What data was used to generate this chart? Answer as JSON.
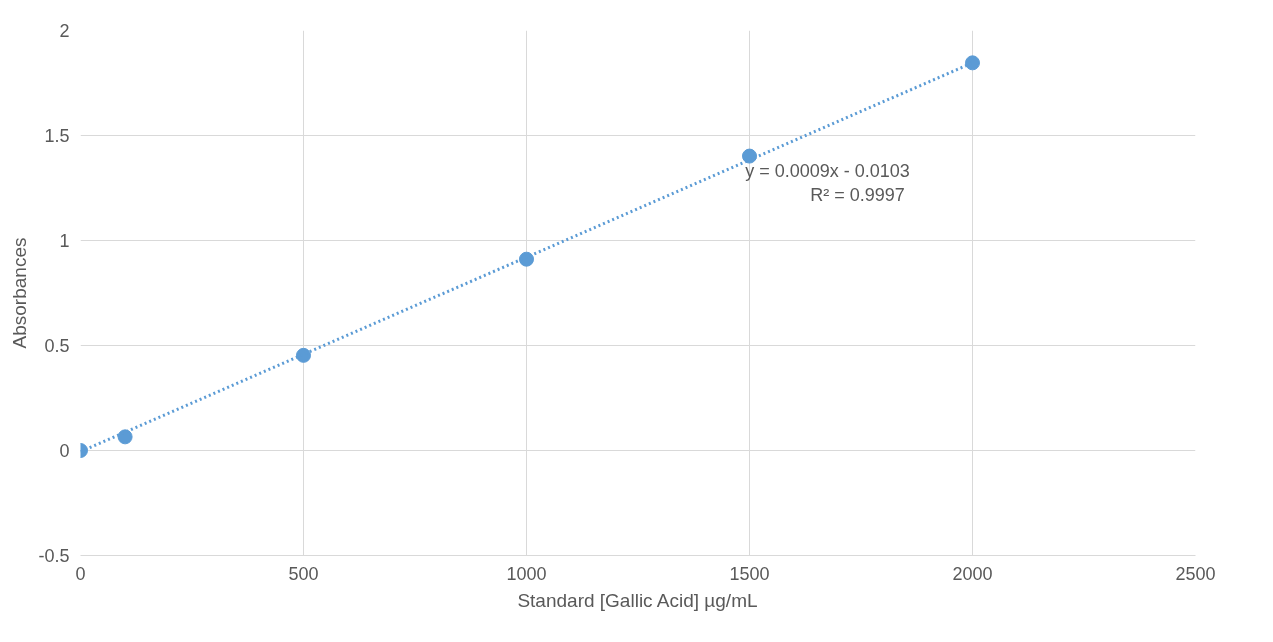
{
  "chart_data": {
    "type": "scatter",
    "xlabel": "Standard [Gallic Acid] µg/mL",
    "ylabel": "Absorbances",
    "x": [
      0,
      100,
      500,
      1000,
      1500,
      2000
    ],
    "series": [
      {
        "color": "#5b9bd5",
        "values": [
          0.0,
          0.065,
          0.453,
          0.911,
          1.402,
          1.846
        ],
        "marker": "circle"
      },
      {
        "type": "line",
        "color": "#5b9bd5",
        "x": [
          0,
          2000
        ],
        "values": [
          -0.005,
          1.846
        ],
        "line_style": "dotted",
        "marker": "none"
      }
    ],
    "annotations": [
      "y = 0.0009x - 0.0103",
      "R² = 0.9997"
    ],
    "xlim": [
      0,
      2500
    ],
    "xticks": [
      0,
      500,
      1000,
      1500,
      2000,
      2500
    ],
    "ylim": [
      -0.5,
      2
    ],
    "yticks": [
      -0.5,
      0,
      0.5,
      1,
      1.5,
      2
    ],
    "grid": true
  }
}
